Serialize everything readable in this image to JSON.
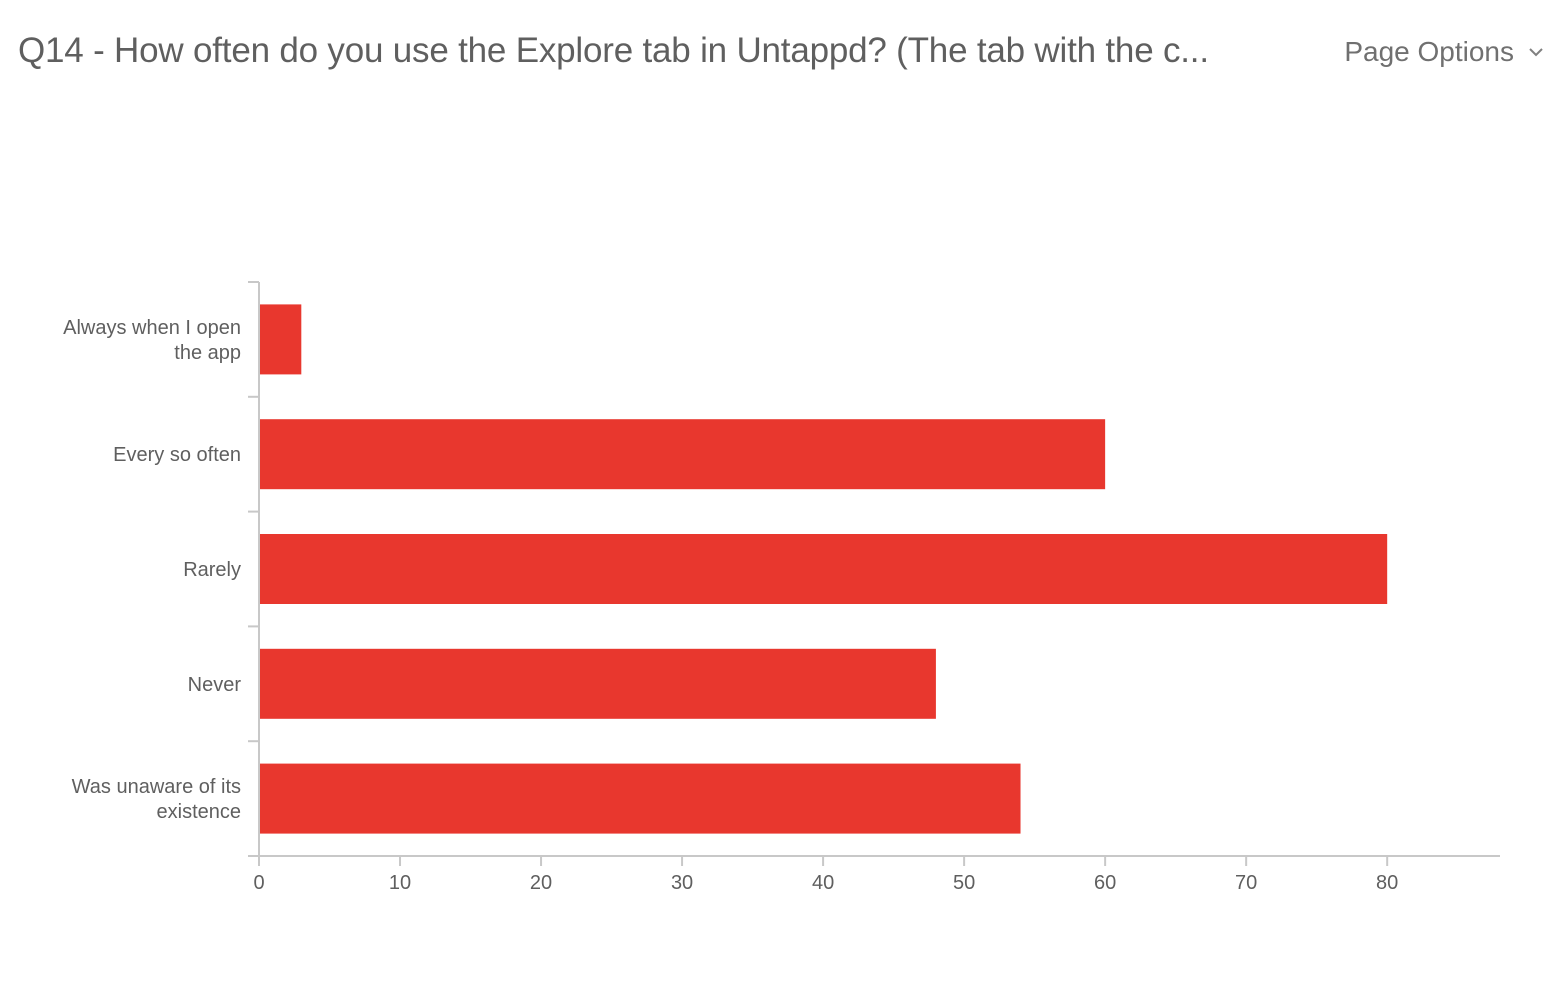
{
  "header": {
    "title": "Q14 - How often do you use the Explore tab in Untappd? (The tab with the c...",
    "page_options_label": "Page Options",
    "page_options_icon": "chevron-down-icon"
  },
  "colors": {
    "bar": "#e8372e",
    "axis": "#c8c8c8",
    "text": "#5f5f5f"
  },
  "chart_data": {
    "type": "bar",
    "orientation": "horizontal",
    "categories": [
      [
        "Always when I open",
        "the app"
      ],
      [
        "Every so often"
      ],
      [
        "Rarely"
      ],
      [
        "Never"
      ],
      [
        "Was unaware of its",
        "existence"
      ]
    ],
    "values": [
      3,
      60,
      80,
      48,
      54
    ],
    "xlim": [
      0,
      88
    ],
    "xticks": [
      0,
      10,
      20,
      30,
      40,
      50,
      60,
      70,
      80
    ],
    "grid": false,
    "legend": "none",
    "title": "",
    "xlabel": "",
    "ylabel": ""
  }
}
